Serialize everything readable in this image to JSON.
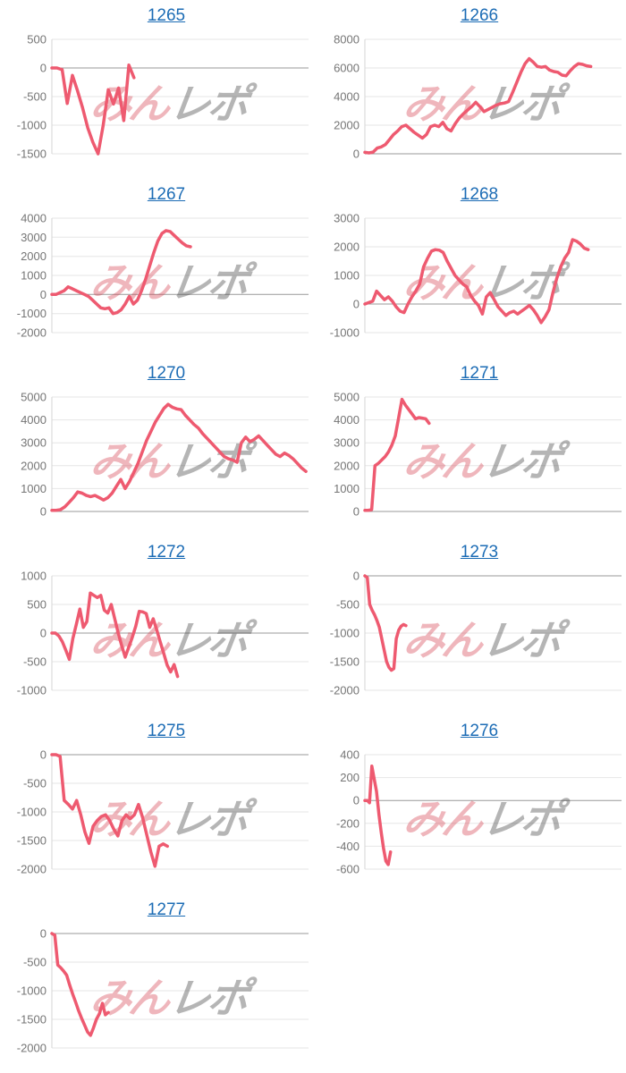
{
  "watermark": {
    "part1": "みん",
    "part2": "レポ"
  },
  "colors": {
    "line": "#ee5a70",
    "link": "#1c6cb5",
    "grid": "#e6e6e6",
    "zero_line": "#999999",
    "axis_line": "#d6d6d6",
    "axis_label": "#757575"
  },
  "chart_data": [
    {
      "type": "line",
      "title": "1265",
      "ylabel": "",
      "xlabel": "",
      "ticks": [
        500,
        0,
        -500,
        -1000,
        -1500
      ],
      "ylim": [
        -1500,
        500
      ],
      "span": 0.32,
      "values": [
        0,
        0,
        -30,
        -620,
        -130,
        -400,
        -700,
        -1050,
        -1300,
        -1500,
        -1000,
        -380,
        -630,
        -350,
        -920,
        50,
        -170
      ]
    },
    {
      "type": "line",
      "title": "1266",
      "ylabel": "",
      "xlabel": "",
      "ticks": [
        8000,
        6000,
        4000,
        2000,
        0
      ],
      "ylim": [
        0,
        8000
      ],
      "span": 0.88,
      "values": [
        100,
        60,
        120,
        400,
        480,
        650,
        1000,
        1350,
        1600,
        1900,
        2000,
        1750,
        1500,
        1300,
        1100,
        1350,
        1900,
        2000,
        1900,
        2200,
        1750,
        1600,
        2100,
        2500,
        2800,
        3050,
        3300,
        3600,
        3300,
        2950,
        3100,
        3250,
        3400,
        3500,
        3550,
        3650,
        4300,
        5000,
        5700,
        6300,
        6650,
        6400,
        6100,
        6050,
        6100,
        5850,
        5750,
        5700,
        5500,
        5450,
        5800,
        6100,
        6300,
        6250,
        6150,
        6100
      ]
    },
    {
      "type": "line",
      "title": "1267",
      "ylabel": "",
      "xlabel": "",
      "ticks": [
        4000,
        3000,
        2000,
        1000,
        0,
        -1000,
        -2000
      ],
      "ylim": [
        -2000,
        4000
      ],
      "span": 0.54,
      "values": [
        0,
        0,
        100,
        200,
        400,
        300,
        200,
        100,
        0,
        -100,
        -300,
        -500,
        -700,
        -750,
        -700,
        -1000,
        -950,
        -800,
        -500,
        -100,
        -500,
        -300,
        200,
        800,
        1500,
        2200,
        2800,
        3200,
        3350,
        3300,
        3100,
        2900,
        2700,
        2550,
        2500
      ]
    },
    {
      "type": "line",
      "title": "1268",
      "ylabel": "",
      "xlabel": "",
      "ticks": [
        3000,
        2000,
        1000,
        0,
        -1000
      ],
      "ylim": [
        -1000,
        3000
      ],
      "span": 0.87,
      "values": [
        0,
        50,
        100,
        450,
        300,
        150,
        250,
        100,
        -100,
        -250,
        -300,
        0,
        250,
        450,
        700,
        1300,
        1600,
        1850,
        1900,
        1880,
        1800,
        1500,
        1250,
        1000,
        850,
        700,
        600,
        300,
        100,
        -50,
        -350,
        250,
        400,
        150,
        -100,
        -250,
        -400,
        -300,
        -250,
        -350,
        -250,
        -150,
        -50,
        -200,
        -400,
        -650,
        -450,
        -200,
        400,
        900,
        1300,
        1600,
        1800,
        2250,
        2200,
        2100,
        1950,
        1900
      ]
    },
    {
      "type": "line",
      "title": "1270",
      "ylabel": "",
      "xlabel": "",
      "ticks": [
        5000,
        4000,
        3000,
        2000,
        1000,
        0
      ],
      "ylim": [
        0,
        5000
      ],
      "span": 0.99,
      "values": [
        50,
        50,
        80,
        200,
        400,
        600,
        850,
        800,
        700,
        650,
        700,
        600,
        500,
        600,
        800,
        1100,
        1400,
        1000,
        1300,
        1700,
        2100,
        2600,
        3100,
        3500,
        3900,
        4200,
        4500,
        4680,
        4550,
        4480,
        4450,
        4200,
        4000,
        3800,
        3650,
        3400,
        3200,
        3000,
        2800,
        2600,
        2400,
        2300,
        2250,
        2150,
        3000,
        3250,
        3050,
        3150,
        3300,
        3100,
        2900,
        2700,
        2500,
        2400,
        2550,
        2450,
        2300,
        2100,
        1900,
        1750
      ]
    },
    {
      "type": "line",
      "title": "1271",
      "ylabel": "",
      "xlabel": "",
      "ticks": [
        5000,
        4000,
        3000,
        2000,
        1000,
        0
      ],
      "ylim": [
        0,
        5000
      ],
      "span": 0.25,
      "values": [
        50,
        50,
        80,
        2000,
        2100,
        2250,
        2400,
        2600,
        2900,
        3300,
        4100,
        4900,
        4650,
        4450,
        4250,
        4050,
        4100,
        4080,
        4050,
        3850
      ]
    },
    {
      "type": "line",
      "title": "1272",
      "ylabel": "",
      "xlabel": "",
      "ticks": [
        1000,
        500,
        0,
        -500,
        -1000
      ],
      "ylim": [
        -1000,
        1000
      ],
      "span": 0.49,
      "values": [
        0,
        0,
        -50,
        -150,
        -300,
        -460,
        -100,
        150,
        420,
        100,
        200,
        700,
        660,
        620,
        660,
        400,
        350,
        500,
        250,
        0,
        -220,
        -420,
        -250,
        -80,
        120,
        380,
        370,
        340,
        100,
        250,
        60,
        -150,
        -350,
        -560,
        -680,
        -550,
        -760
      ]
    },
    {
      "type": "line",
      "title": "1273",
      "ylabel": "",
      "xlabel": "",
      "ticks": [
        0,
        -500,
        -1000,
        -1500,
        -2000
      ],
      "ylim": [
        -2000,
        0
      ],
      "span": 0.16,
      "values": [
        0,
        -30,
        -500,
        -600,
        -680,
        -780,
        -900,
        -1100,
        -1300,
        -1500,
        -1600,
        -1650,
        -1620,
        -1100,
        -950,
        -880,
        -850,
        -870
      ]
    },
    {
      "type": "line",
      "title": "1275",
      "ylabel": "",
      "xlabel": "",
      "ticks": [
        0,
        -500,
        -1000,
        -1500,
        -2000
      ],
      "ylim": [
        -2000,
        0
      ],
      "span": 0.45,
      "values": [
        0,
        0,
        -30,
        -800,
        -870,
        -950,
        -800,
        -1050,
        -1350,
        -1550,
        -1250,
        -1150,
        -1080,
        -1050,
        -1150,
        -1300,
        -1420,
        -1150,
        -1050,
        -1120,
        -1050,
        -870,
        -1100,
        -1400,
        -1700,
        -1950,
        -1600,
        -1560,
        -1600
      ]
    },
    {
      "type": "line",
      "title": "1276",
      "ylabel": "",
      "xlabel": "",
      "ticks": [
        400,
        200,
        0,
        -200,
        -400,
        -600
      ],
      "ylim": [
        -600,
        400
      ],
      "span": 0.1,
      "values": [
        0,
        0,
        -20,
        300,
        190,
        80,
        -120,
        -280,
        -420,
        -530,
        -560,
        -450
      ]
    },
    {
      "type": "line",
      "title": "1277",
      "ylabel": "",
      "xlabel": "",
      "ticks": [
        0,
        -500,
        -1000,
        -1500,
        -2000
      ],
      "ylim": [
        -2000,
        0
      ],
      "span": 0.22,
      "values": [
        0,
        -30,
        -550,
        -600,
        -660,
        -730,
        -900,
        -1060,
        -1200,
        -1350,
        -1480,
        -1600,
        -1720,
        -1780,
        -1650,
        -1500,
        -1400,
        -1220,
        -1420,
        -1380
      ]
    }
  ]
}
